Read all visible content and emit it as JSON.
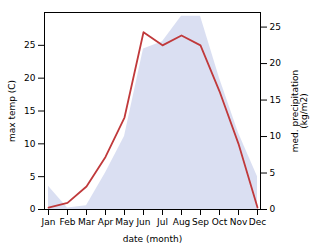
{
  "chart_data": {
    "type": "line",
    "xlabel": "date (month)",
    "ylabel": "max temp (C)",
    "y2label": "med. precipitation\n(kg/m2)",
    "categories": [
      "Jan",
      "Feb",
      "Mar",
      "Apr",
      "May",
      "Jun",
      "Jul",
      "Aug",
      "Sep",
      "Oct",
      "Nov",
      "Dec"
    ],
    "series": [
      {
        "type": "area",
        "axis": "y2",
        "color": "#bcc5e8",
        "values": [
          3.2,
          0.2,
          0.5,
          5.0,
          10.0,
          22.0,
          23.0,
          26.5,
          26.5,
          18.0,
          10.5,
          4.5
        ]
      },
      {
        "type": "line",
        "color": "#c0393b",
        "values": [
          0.3,
          1.0,
          3.5,
          8.0,
          14.0,
          27.0,
          25.0,
          26.5,
          25.0,
          18.0,
          10.0,
          0.3
        ]
      }
    ],
    "ylim": [
      0,
      30
    ],
    "yticks": [
      0,
      5,
      10,
      15,
      20,
      25
    ],
    "y2lim": [
      0,
      27
    ],
    "y2ticks": [
      0,
      5,
      10,
      15,
      20,
      25
    ]
  }
}
